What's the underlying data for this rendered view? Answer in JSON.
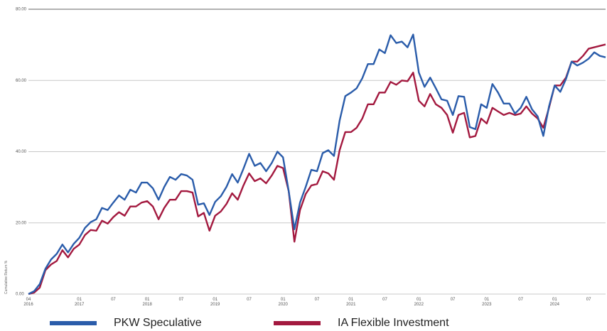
{
  "chart_data": {
    "type": "line",
    "y_label": "Cumulative Return %",
    "categories": [
      "04\n2016",
      null,
      null,
      null,
      null,
      null,
      null,
      null,
      null,
      "01\n2017",
      null,
      null,
      null,
      null,
      null,
      "07",
      null,
      null,
      null,
      null,
      null,
      "01\n2018",
      null,
      null,
      null,
      null,
      null,
      "07",
      null,
      null,
      null,
      null,
      null,
      "01\n2019",
      null,
      null,
      null,
      null,
      null,
      "07",
      null,
      null,
      null,
      null,
      null,
      "01\n2020",
      null,
      null,
      null,
      null,
      null,
      "07",
      null,
      null,
      null,
      null,
      null,
      "01\n2021",
      null,
      null,
      null,
      null,
      null,
      "07",
      null,
      null,
      null,
      null,
      null,
      "01\n2022",
      null,
      null,
      null,
      null,
      null,
      "07",
      null,
      null,
      null,
      null,
      null,
      "01\n2023",
      null,
      null,
      null,
      null,
      null,
      "07",
      null,
      null,
      null,
      null,
      null,
      "01\n2024",
      null,
      null,
      null,
      null,
      null,
      "07",
      null,
      null,
      null
    ],
    "series": [
      {
        "name": "PKW Speculative",
        "color": "#2a5caa",
        "values": [
          0,
          0.8,
          2.8,
          7.1,
          9.7,
          11.3,
          13.9,
          11.7,
          14.1,
          15.8,
          18.6,
          20.2,
          21.0,
          24.2,
          23.6,
          25.7,
          27.7,
          26.5,
          29.3,
          28.5,
          31.3,
          31.3,
          29.7,
          26.5,
          30.1,
          32.9,
          32.1,
          33.7,
          33.3,
          32.1,
          25.1,
          25.5,
          22.2,
          25.9,
          27.5,
          30.1,
          33.7,
          31.3,
          35.2,
          39.4,
          36.0,
          36.8,
          34.5,
          36.8,
          40.0,
          38.4,
          28.9,
          18.2,
          25.7,
          30.1,
          34.9,
          34.5,
          39.6,
          40.4,
          38.8,
          48.7,
          55.6,
          56.6,
          57.8,
          60.6,
          64.6,
          64.6,
          68.7,
          67.7,
          72.7,
          70.5,
          70.9,
          69.3,
          72.9,
          62.2,
          58.2,
          60.8,
          57.8,
          54.7,
          54.3,
          50.3,
          55.6,
          55.4,
          46.9,
          46.3,
          53.3,
          52.3,
          59.0,
          56.6,
          53.5,
          53.5,
          50.7,
          52.3,
          55.4,
          51.9,
          49.9,
          44.4,
          52.7,
          58.6,
          56.8,
          60.4,
          65.3,
          64.2,
          65.0,
          66.1,
          67.9,
          66.9,
          66.5
        ]
      },
      {
        "name": "IA Flexible Investment",
        "color": "#a3193f",
        "values": [
          0,
          0.4,
          1.8,
          6.7,
          8.3,
          9.3,
          12.3,
          10.3,
          12.7,
          13.9,
          16.6,
          18.0,
          17.8,
          20.6,
          19.8,
          21.6,
          23.0,
          22.0,
          24.6,
          24.6,
          25.7,
          26.1,
          24.6,
          21.0,
          24.2,
          26.5,
          26.5,
          28.9,
          28.9,
          28.5,
          21.8,
          22.8,
          17.8,
          22.0,
          23.2,
          25.3,
          28.3,
          26.5,
          30.5,
          33.9,
          31.7,
          32.5,
          31.1,
          33.3,
          36.0,
          35.4,
          28.9,
          14.7,
          23.6,
          28.1,
          30.5,
          30.9,
          34.5,
          33.9,
          32.1,
          40.4,
          45.5,
          45.5,
          46.7,
          49.3,
          53.3,
          53.3,
          56.6,
          56.6,
          59.6,
          58.8,
          60.0,
          59.8,
          62.2,
          54.3,
          52.7,
          56.2,
          53.3,
          52.3,
          50.3,
          45.3,
          50.3,
          50.9,
          44.0,
          44.4,
          49.3,
          47.9,
          52.3,
          51.3,
          50.3,
          50.9,
          50.3,
          50.7,
          52.7,
          50.7,
          49.3,
          46.7,
          52.3,
          58.6,
          58.6,
          60.8,
          65.3,
          65.3,
          66.9,
          68.9,
          69.3,
          69.7,
          70.1
        ]
      }
    ],
    "ylim": [
      0,
      80
    ],
    "yticks": [
      {
        "value": 0,
        "label": "0.00"
      },
      {
        "value": 20,
        "label": "20.00"
      },
      {
        "value": 40,
        "label": "40.00"
      },
      {
        "value": 60,
        "label": "60.00"
      },
      {
        "value": 80,
        "label": "80.00"
      }
    ],
    "grid": true
  }
}
